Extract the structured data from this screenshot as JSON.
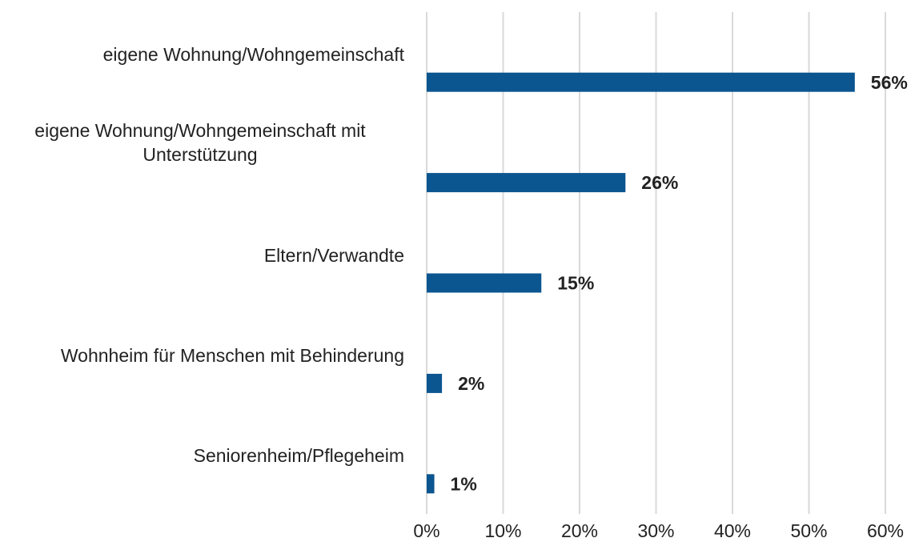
{
  "chart_data": {
    "type": "bar",
    "orientation": "horizontal",
    "categories": [
      "eigene Wohnung/Wohngemeinschaft",
      "eigene Wohnung/Wohngemeinschaft mit Unterstützung",
      "Eltern/Verwandte",
      "Wohnheim für Menschen mit Behinderung",
      "Seniorenheim/Pflegeheim"
    ],
    "values": [
      56,
      26,
      15,
      2,
      1
    ],
    "value_labels": [
      "56%",
      "26%",
      "15%",
      "2%",
      "1%"
    ],
    "color": "#0b5590",
    "xlim": [
      0,
      60
    ],
    "xticks": [
      {
        "value": 0,
        "label": "0%"
      },
      {
        "value": 10,
        "label": "10%"
      },
      {
        "value": 20,
        "label": "20%"
      },
      {
        "value": 30,
        "label": "30%"
      },
      {
        "value": 40,
        "label": "40%"
      },
      {
        "value": 50,
        "label": "50%"
      },
      {
        "value": 60,
        "label": "60%"
      }
    ],
    "grid": true
  }
}
